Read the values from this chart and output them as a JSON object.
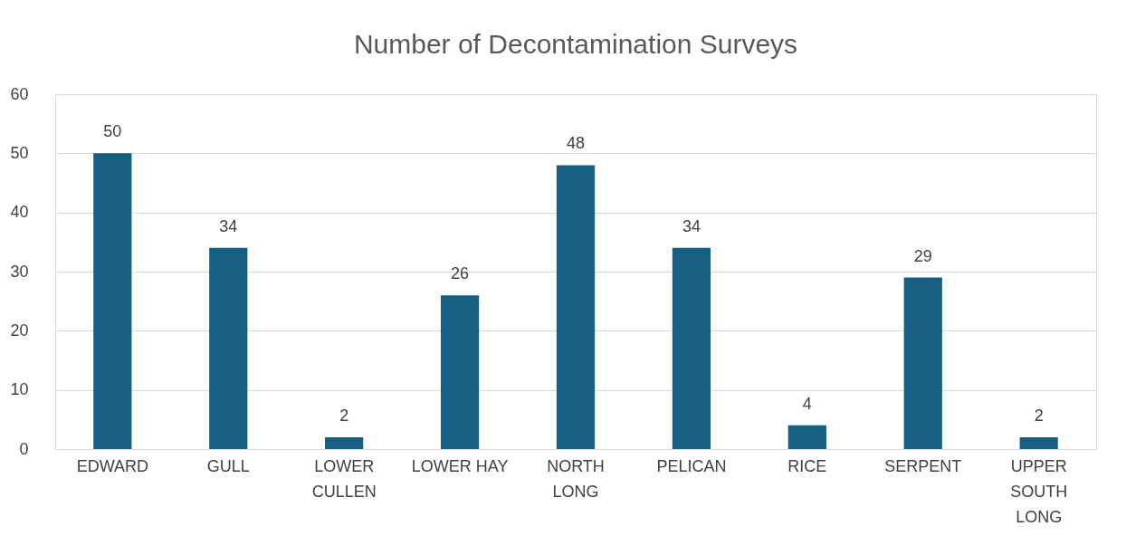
{
  "chart_data": {
    "type": "bar",
    "title": "Number of Decontamination Surveys",
    "categories": [
      "EDWARD",
      "GULL",
      "LOWER CULLEN",
      "LOWER HAY",
      "NORTH LONG",
      "PELICAN",
      "RICE",
      "SERPENT",
      "UPPER SOUTH LONG"
    ],
    "values": [
      50,
      34,
      2,
      26,
      48,
      34,
      4,
      29,
      2
    ],
    "color": "#156082",
    "ylim": [
      0,
      60
    ],
    "yticks": [
      0,
      10,
      20,
      30,
      40,
      50,
      60
    ],
    "grid": "y",
    "data_labels": true
  }
}
